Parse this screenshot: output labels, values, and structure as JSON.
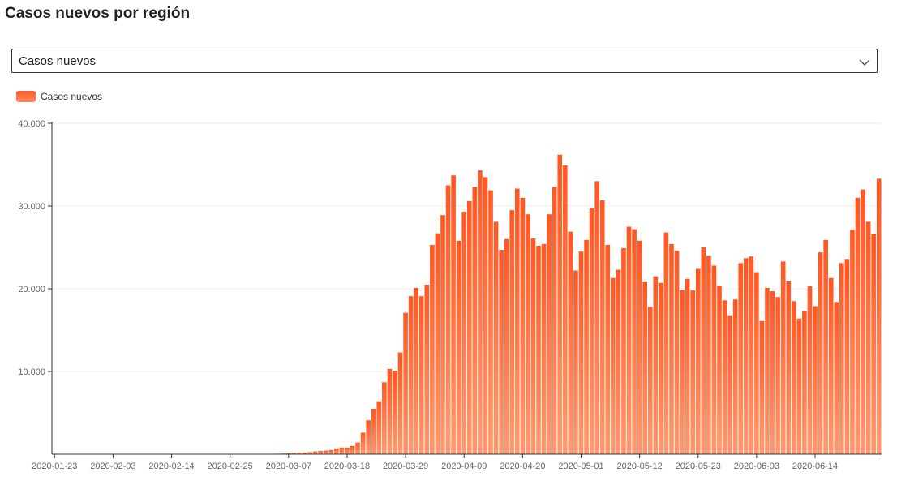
{
  "page": {
    "title": "Casos nuevos por región",
    "select_value": "Casos nuevos"
  },
  "colors": {
    "bar_top": "#ff5722",
    "bar_bottom": "#ff9a70"
  },
  "chart_data": {
    "type": "bar",
    "xlabel": "",
    "ylabel": "",
    "ylim": [
      0,
      40000
    ],
    "yticks": [
      10000,
      20000,
      30000,
      40000
    ],
    "ytick_labels": [
      "10.000",
      "20.000",
      "30.000",
      "40.000"
    ],
    "grid": true,
    "legend": {
      "position": "top-left",
      "entries": [
        "Casos nuevos"
      ]
    },
    "start_date": "2020-01-23",
    "xtick_labels": [
      "2020-01-23",
      "2020-02-03",
      "2020-02-14",
      "2020-02-25",
      "2020-03-07",
      "2020-03-18",
      "2020-03-29",
      "2020-04-09",
      "2020-04-20",
      "2020-05-01",
      "2020-05-12",
      "2020-05-23",
      "2020-06-03",
      "2020-06-14"
    ],
    "series": [
      {
        "name": "Casos nuevos",
        "values": [
          0,
          0,
          0,
          0,
          0,
          0,
          0,
          0,
          0,
          0,
          0,
          0,
          0,
          0,
          0,
          0,
          0,
          0,
          0,
          0,
          0,
          0,
          0,
          0,
          0,
          0,
          0,
          0,
          0,
          0,
          0,
          0,
          0,
          0,
          0,
          0,
          0,
          0,
          0,
          0,
          0,
          50,
          60,
          80,
          100,
          150,
          180,
          200,
          250,
          330,
          400,
          430,
          500,
          700,
          800,
          800,
          1000,
          1400,
          2600,
          4100,
          5500,
          6400,
          8700,
          10300,
          10100,
          12300,
          17100,
          19100,
          20100,
          19100,
          20500,
          25300,
          26700,
          28900,
          32500,
          33700,
          25800,
          29300,
          30600,
          32300,
          34300,
          33500,
          31900,
          28100,
          24700,
          26000,
          29500,
          32100,
          31000,
          29000,
          26100,
          25200,
          25400,
          29000,
          32300,
          36200,
          34900,
          26900,
          22200,
          24500,
          25900,
          29700,
          33000,
          30700,
          25300,
          21300,
          22300,
          24900,
          27500,
          27200,
          25800,
          20800,
          17800,
          21500,
          20700,
          26800,
          25400,
          24600,
          19800,
          21200,
          19800,
          22400,
          25000,
          24000,
          22800,
          20400,
          18600,
          16800,
          18700,
          23100,
          23700,
          23900,
          22000,
          16100,
          20100,
          19700,
          19000,
          23300,
          20900,
          18500,
          16400,
          17300,
          20300,
          17900,
          24400,
          25900,
          21300,
          18400,
          23100,
          23600,
          27100,
          31000,
          32000,
          28100,
          26600,
          33300
        ]
      }
    ]
  }
}
